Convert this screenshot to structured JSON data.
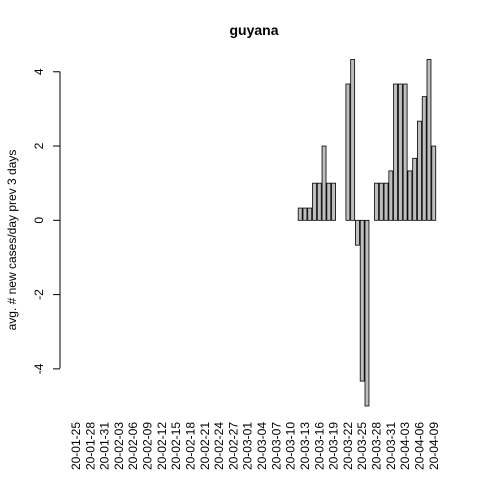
{
  "chart_data": {
    "type": "bar",
    "title": "guyana",
    "y_label": "avg. # new cases/day prev  3  days",
    "categories": [
      "20-01-25",
      null,
      null,
      "20-01-28",
      null,
      null,
      "20-01-31",
      null,
      null,
      "20-02-03",
      null,
      null,
      "20-02-06",
      null,
      null,
      "20-02-09",
      null,
      null,
      "20-02-12",
      null,
      null,
      "20-02-15",
      null,
      null,
      "20-02-18",
      null,
      null,
      "20-02-21",
      null,
      null,
      "20-02-24",
      null,
      null,
      "20-02-27",
      null,
      null,
      "20-03-01",
      null,
      null,
      "20-03-04",
      null,
      null,
      "20-03-07",
      null,
      null,
      "20-03-10",
      null,
      null,
      "20-03-13",
      null,
      null,
      "20-03-16",
      null,
      null,
      "20-03-19",
      null,
      null,
      "20-03-22",
      null,
      null,
      "20-03-25",
      null,
      null,
      "20-03-28",
      null,
      null,
      "20-03-31",
      null,
      null,
      "20-04-03",
      null,
      null,
      "20-04-06",
      null,
      null,
      "20-04-09"
    ],
    "values": [
      0,
      0,
      0,
      0,
      0,
      0,
      0,
      0,
      0,
      0,
      0,
      0,
      0,
      0,
      0,
      0,
      0,
      0,
      0,
      0,
      0,
      0,
      0,
      0,
      0,
      0,
      0,
      0,
      0,
      0,
      0,
      0,
      0,
      0,
      0,
      0,
      0,
      0,
      0,
      0,
      0,
      0,
      0,
      0,
      0,
      0,
      0,
      0.33,
      0.33,
      0.33,
      1,
      1,
      2,
      1,
      1,
      0,
      0,
      3.67,
      4.33,
      -0.67,
      -4.33,
      -5,
      0,
      1,
      1,
      1,
      1.33,
      3.67,
      3.67,
      3.67,
      1.33,
      1.67,
      2.67,
      3.33,
      4.33,
      2
    ],
    "color": "#bebebe",
    "ylim": [
      -5,
      4.333
    ],
    "yticks": [
      -4,
      -2,
      0,
      2,
      4
    ]
  }
}
